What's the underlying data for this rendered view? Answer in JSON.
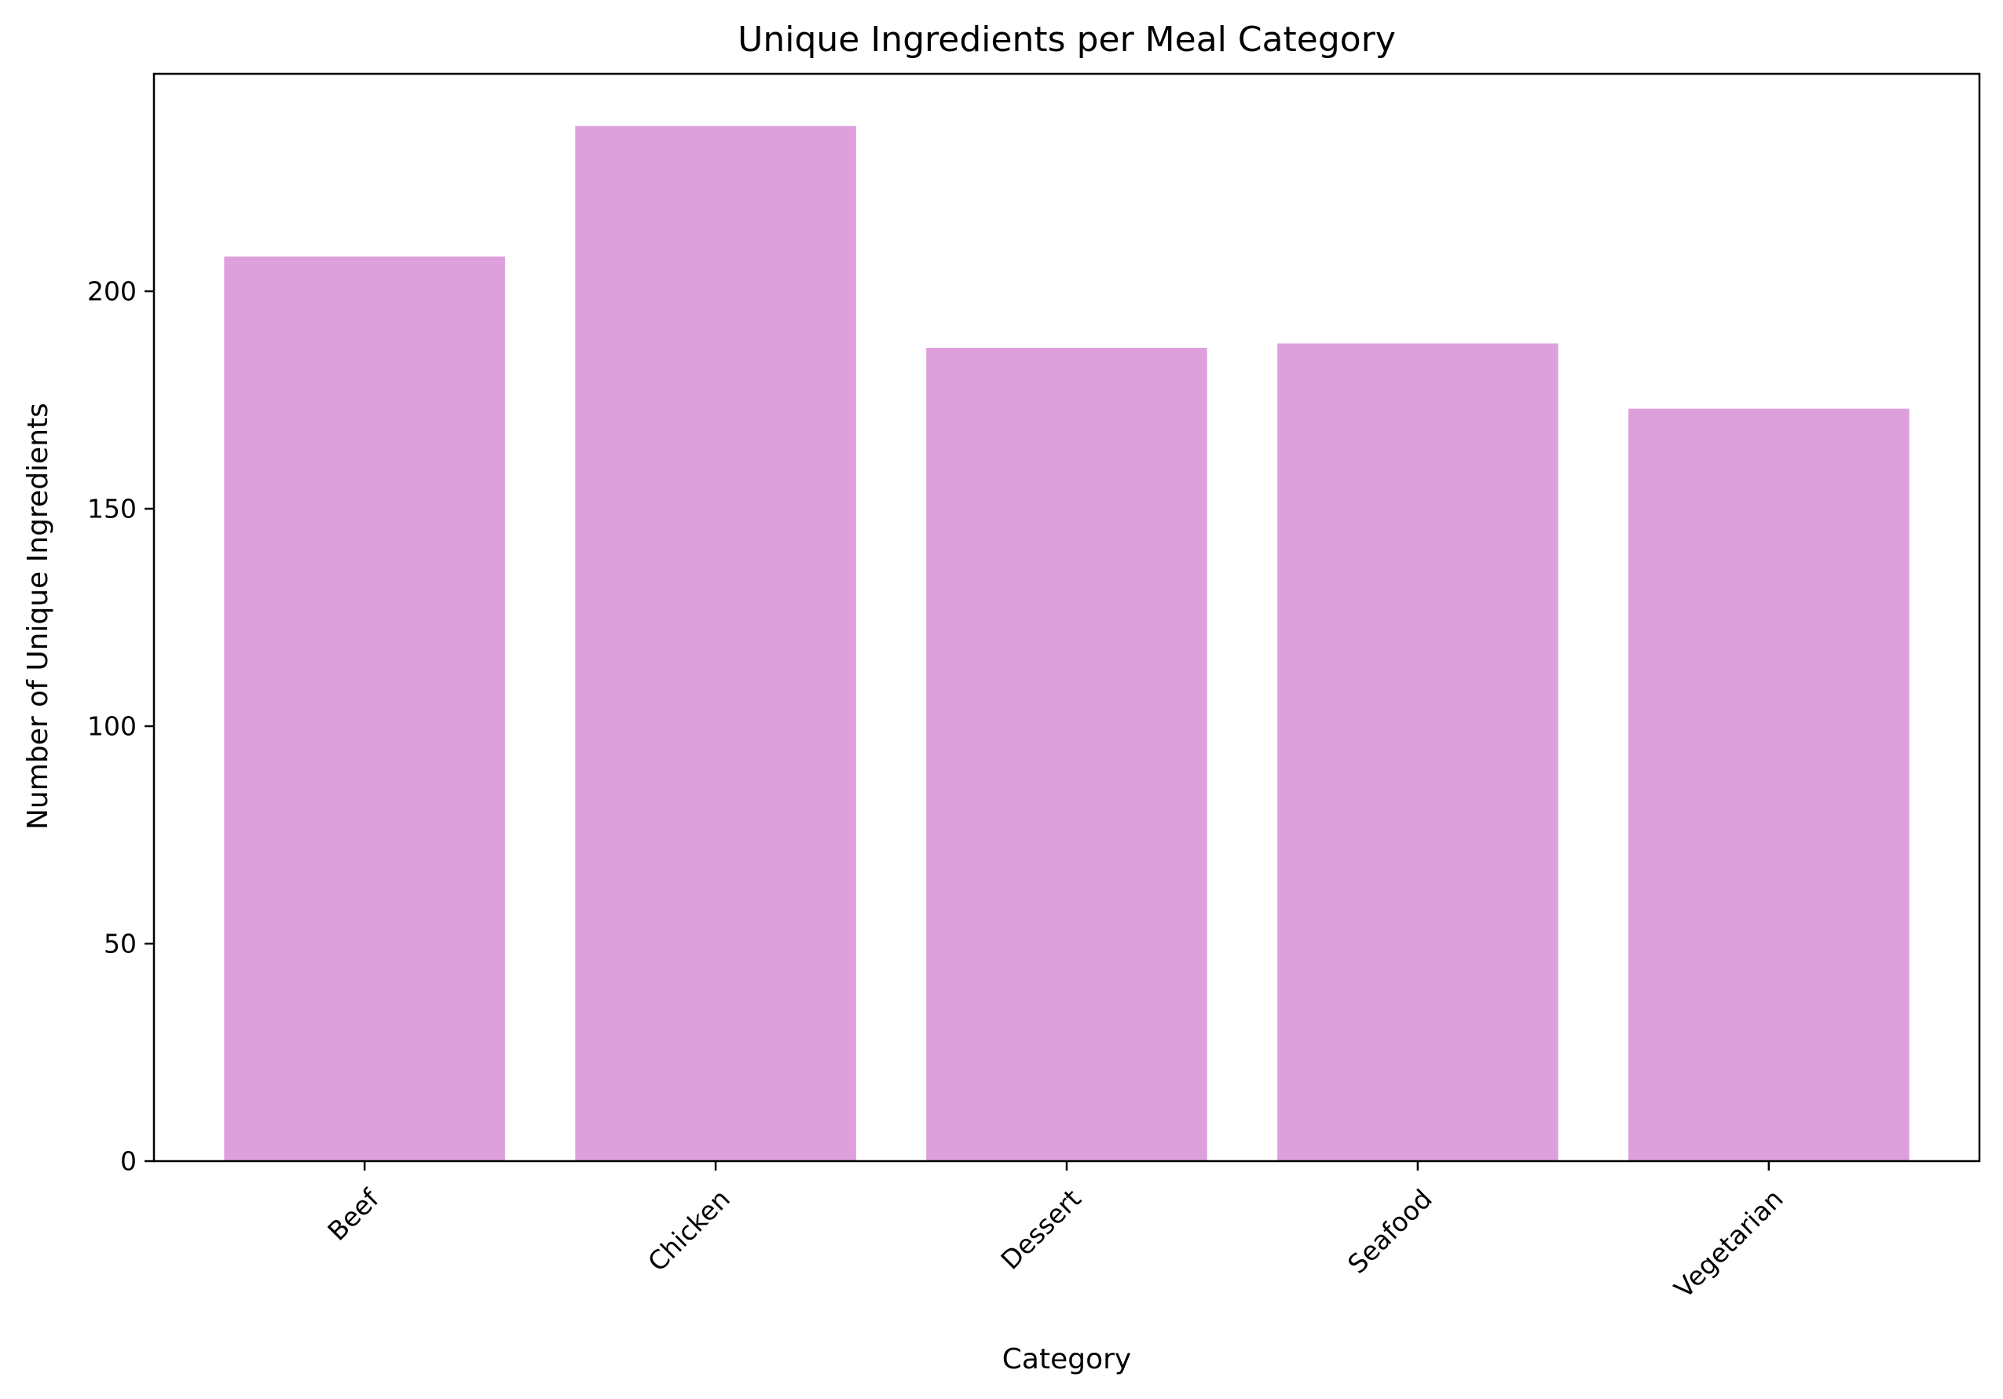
{
  "chart_data": {
    "type": "bar",
    "title": "Unique Ingredients per Meal Category",
    "xlabel": "Category",
    "ylabel": "Number of Unique Ingredients",
    "categories": [
      "Beef",
      "Chicken",
      "Dessert",
      "Seafood",
      "Vegetarian"
    ],
    "values": [
      208,
      238,
      187,
      188,
      173
    ],
    "ylim": [
      0,
      250
    ],
    "yticks": [
      0,
      50,
      100,
      150,
      200
    ],
    "grid": false,
    "bar_color": "#DDA0DD",
    "xtick_rotation_deg": 45
  }
}
